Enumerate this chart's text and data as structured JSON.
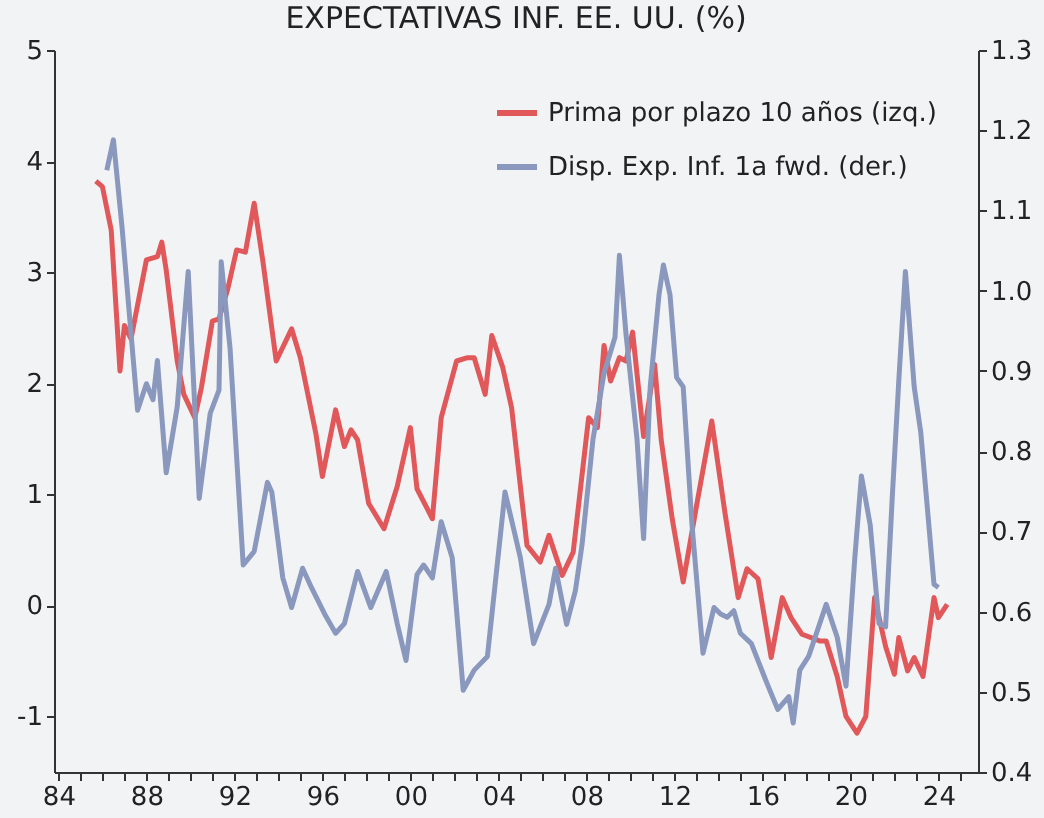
{
  "chart_data": {
    "type": "line",
    "title": "EXPECTATIVAS INF. EE. UU. (%)",
    "legend": "top right",
    "grid": false,
    "line_style": "solid",
    "xlim": [
      1983.8,
      2025.8
    ],
    "xticks": [
      {
        "value": 1984,
        "label": "84"
      },
      {
        "value": 1985,
        "label": null
      },
      {
        "value": 1986,
        "label": null
      },
      {
        "value": 1987,
        "label": null
      },
      {
        "value": 1988,
        "label": "88"
      },
      {
        "value": 1989,
        "label": null
      },
      {
        "value": 1990,
        "label": null
      },
      {
        "value": 1991,
        "label": null
      },
      {
        "value": 1992,
        "label": "92"
      },
      {
        "value": 1993,
        "label": null
      },
      {
        "value": 1994,
        "label": null
      },
      {
        "value": 1995,
        "label": null
      },
      {
        "value": 1996,
        "label": "96"
      },
      {
        "value": 1997,
        "label": null
      },
      {
        "value": 1998,
        "label": null
      },
      {
        "value": 1999,
        "label": null
      },
      {
        "value": 2000,
        "label": "00"
      },
      {
        "value": 2001,
        "label": null
      },
      {
        "value": 2002,
        "label": null
      },
      {
        "value": 2003,
        "label": null
      },
      {
        "value": 2004,
        "label": "04"
      },
      {
        "value": 2005,
        "label": null
      },
      {
        "value": 2006,
        "label": null
      },
      {
        "value": 2007,
        "label": null
      },
      {
        "value": 2008,
        "label": "08"
      },
      {
        "value": 2009,
        "label": null
      },
      {
        "value": 2010,
        "label": null
      },
      {
        "value": 2011,
        "label": null
      },
      {
        "value": 2012,
        "label": "12"
      },
      {
        "value": 2013,
        "label": null
      },
      {
        "value": 2014,
        "label": null
      },
      {
        "value": 2015,
        "label": null
      },
      {
        "value": 2016,
        "label": "16"
      },
      {
        "value": 2017,
        "label": null
      },
      {
        "value": 2018,
        "label": null
      },
      {
        "value": 2019,
        "label": null
      },
      {
        "value": 2020,
        "label": "20"
      },
      {
        "value": 2021,
        "label": null
      },
      {
        "value": 2022,
        "label": null
      },
      {
        "value": 2023,
        "label": null
      },
      {
        "value": 2024,
        "label": "24"
      },
      {
        "value": 2025,
        "label": null
      }
    ],
    "ylim": [
      -1.5,
      5
    ],
    "yticks": [
      -1,
      0,
      1,
      2,
      3,
      4,
      5
    ],
    "y2lim": [
      0.4,
      1.3
    ],
    "y2ticks": [
      0.4,
      0.5,
      0.6,
      0.7,
      0.8,
      0.9,
      {
        "value": 1,
        "label": "1.0"
      },
      1.1,
      1.2,
      1.3
    ],
    "series": [
      {
        "name": "Prima por plazo 10 años (izq.)",
        "color": "#e0585a",
        "x": [
          1985.7,
          1986.0,
          1986.4,
          1986.8,
          1987.0,
          1987.3,
          1988.0,
          1988.5,
          1988.7,
          1988.9,
          1989.4,
          1989.7,
          1990.2,
          1990.5,
          1991.0,
          1991.3,
          1991.7,
          1992.1,
          1992.5,
          1992.9,
          1993.3,
          1993.9,
          1994.6,
          1995.0,
          1995.7,
          1996.0,
          1996.6,
          1997.0,
          1997.3,
          1997.6,
          1998.1,
          1998.8,
          1999.4,
          2000.0,
          2000.3,
          2001.0,
          2001.4,
          2002.1,
          2002.6,
          2002.9,
          2003.4,
          2003.7,
          2004.2,
          2004.6,
          2005.3,
          2005.9,
          2006.3,
          2006.9,
          2007.4,
          2008.1,
          2008.5,
          2008.8,
          2009.1,
          2009.5,
          2009.8,
          2010.1,
          2010.6,
          2011.1,
          2011.4,
          2011.9,
          2012.4,
          2013.0,
          2013.7,
          2014.3,
          2014.9,
          2015.3,
          2015.8,
          2016.4,
          2016.9,
          2017.3,
          2017.8,
          2018.6,
          2018.9,
          2019.4,
          2019.8,
          2020.3,
          2020.7,
          2021.1,
          2021.6,
          2022.0,
          2022.2,
          2022.6,
          2022.9,
          2023.3,
          2023.8,
          2024.0,
          2024.4
        ],
        "values": [
          3.82,
          3.77,
          3.38,
          2.11,
          2.52,
          2.4,
          3.11,
          3.14,
          3.27,
          3.02,
          2.2,
          1.9,
          1.69,
          1.96,
          2.56,
          2.58,
          2.85,
          3.2,
          3.18,
          3.62,
          3.09,
          2.2,
          2.49,
          2.23,
          1.55,
          1.16,
          1.76,
          1.43,
          1.58,
          1.49,
          0.92,
          0.69,
          1.07,
          1.6,
          1.05,
          0.78,
          1.69,
          2.2,
          2.23,
          2.23,
          1.9,
          2.43,
          2.14,
          1.78,
          0.54,
          0.39,
          0.63,
          0.27,
          0.48,
          1.69,
          1.6,
          2.34,
          2.02,
          2.23,
          2.2,
          2.46,
          1.52,
          2.17,
          1.49,
          0.78,
          0.21,
          0.89,
          1.66,
          0.83,
          0.07,
          0.33,
          0.24,
          -0.47,
          0.07,
          -0.11,
          -0.26,
          -0.32,
          -0.32,
          -0.64,
          -1.0,
          -1.15,
          -1.0,
          0.07,
          -0.37,
          -0.62,
          -0.29,
          -0.59,
          -0.47,
          -0.64,
          0.07,
          -0.11,
          0.01
        ]
      },
      {
        "name": "Disp. Exp. Inf. 1a fwd. (der.)",
        "color": "#8a98be",
        "axis": "y2",
        "x": [
          1986.2,
          1986.5,
          1986.9,
          1987.2,
          1987.6,
          1988.0,
          1988.3,
          1988.5,
          1988.9,
          1989.4,
          1989.9,
          1990.4,
          1990.9,
          1991.3,
          1991.4,
          1991.8,
          1992.4,
          1992.9,
          1993.5,
          1993.7,
          1994.2,
          1994.6,
          1995.1,
          1995.5,
          1996.1,
          1996.6,
          1997.0,
          1997.6,
          1998.2,
          1998.9,
          1999.4,
          1999.8,
          2000.3,
          2000.6,
          2001.0,
          2001.4,
          2001.9,
          2002.4,
          2002.9,
          2003.5,
          2004.3,
          2005.0,
          2005.6,
          2006.3,
          2006.6,
          2007.1,
          2007.5,
          2007.8,
          2008.3,
          2008.8,
          2009.3,
          2009.5,
          2009.8,
          2010.3,
          2010.6,
          2010.9,
          2011.3,
          2011.5,
          2011.8,
          2012.1,
          2012.4,
          2012.8,
          2013.3,
          2013.8,
          2014.1,
          2014.4,
          2014.7,
          2015.0,
          2015.5,
          2016.2,
          2016.7,
          2017.2,
          2017.4,
          2017.7,
          2018.1,
          2018.9,
          2019.4,
          2019.8,
          2020.2,
          2020.5,
          2020.9,
          2021.3,
          2021.6,
          2021.9,
          2022.2,
          2022.5,
          2022.9,
          2023.2,
          2023.8,
          2024.0
        ],
        "values": [
          1.15,
          1.188,
          1.077,
          0.979,
          0.851,
          0.884,
          0.864,
          0.913,
          0.773,
          0.855,
          1.024,
          0.741,
          0.847,
          0.876,
          1.036,
          0.929,
          0.658,
          0.675,
          0.761,
          0.749,
          0.642,
          0.605,
          0.654,
          0.63,
          0.597,
          0.573,
          0.585,
          0.65,
          0.605,
          0.65,
          0.585,
          0.539,
          0.646,
          0.658,
          0.642,
          0.712,
          0.667,
          0.502,
          0.527,
          0.544,
          0.749,
          0.667,
          0.56,
          0.609,
          0.654,
          0.584,
          0.626,
          0.683,
          0.815,
          0.897,
          0.942,
          1.044,
          0.946,
          0.815,
          0.691,
          0.88,
          0.995,
          1.032,
          0.995,
          0.892,
          0.88,
          0.708,
          0.548,
          0.605,
          0.597,
          0.593,
          0.601,
          0.573,
          0.56,
          0.511,
          0.478,
          0.494,
          0.461,
          0.527,
          0.544,
          0.609,
          0.568,
          0.507,
          0.667,
          0.769,
          0.708,
          0.585,
          0.581,
          0.741,
          0.888,
          1.024,
          0.88,
          0.823,
          0.634,
          0.63
        ]
      }
    ]
  }
}
